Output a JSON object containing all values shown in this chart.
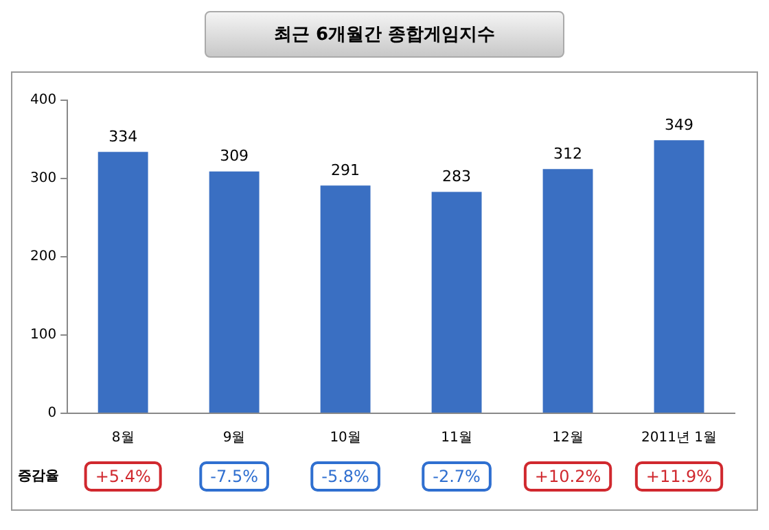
{
  "chart_data": {
    "type": "bar",
    "title": "최근 6개월간 종합게임지수",
    "categories": [
      "8월",
      "9월",
      "10월",
      "11월",
      "12월",
      "2011년 1월"
    ],
    "values": [
      334,
      309,
      291,
      283,
      312,
      349
    ],
    "color": "#3a6fc2",
    "ylim": [
      0,
      400
    ],
    "yticks": [
      0,
      100,
      200,
      300,
      400
    ],
    "grid": false,
    "data_labels": true,
    "annotations": [
      "증감율",
      "+5.4%",
      "-7.5%",
      "-5.8%",
      "-2.7%",
      "+10.2%",
      "+11.9%"
    ]
  }
}
